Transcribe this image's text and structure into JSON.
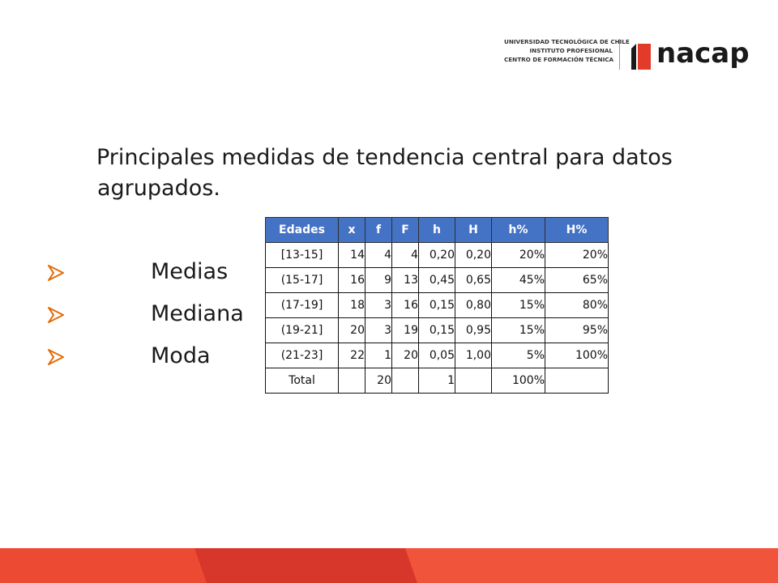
{
  "logo": {
    "lines": [
      "UNIVERSIDAD TECNOLÓGICA DE CHILE",
      "INSTITUTO PROFESIONAL",
      "CENTRO DE FORMACIÓN TÉCNICA"
    ],
    "wordmark": "nacap",
    "brand_color": "#e23b2a"
  },
  "title": {
    "line1": "Principales medidas de tendencia central para datos",
    "line2": "agrupados."
  },
  "bullets": [
    {
      "icon": "arrow-bullet-icon",
      "label": "Medias"
    },
    {
      "icon": "arrow-bullet-icon",
      "label": "Mediana"
    },
    {
      "icon": "arrow-bullet-icon",
      "label": "Moda"
    }
  ],
  "table": {
    "header_color": "#4472c4",
    "headers": [
      "Edades",
      "x",
      "f",
      "F",
      "h",
      "H",
      "h%",
      "H%"
    ],
    "rows": [
      [
        "[13-15]",
        "14",
        "4",
        "4",
        "0,20",
        "0,20",
        "20%",
        "20%"
      ],
      [
        "(15-17]",
        "16",
        "9",
        "13",
        "0,45",
        "0,65",
        "45%",
        "65%"
      ],
      [
        "(17-19]",
        "18",
        "3",
        "16",
        "0,15",
        "0,80",
        "15%",
        "80%"
      ],
      [
        "(19-21]",
        "20",
        "3",
        "19",
        "0,15",
        "0,95",
        "15%",
        "95%"
      ],
      [
        "(21-23]",
        "22",
        "1",
        "20",
        "0,05",
        "1,00",
        "5%",
        "100%"
      ],
      [
        "Total",
        "",
        "20",
        "",
        "1",
        "",
        "100%",
        ""
      ]
    ]
  },
  "footer": {
    "colors": [
      "#e8432f",
      "#d7372a",
      "#f0553b"
    ]
  }
}
